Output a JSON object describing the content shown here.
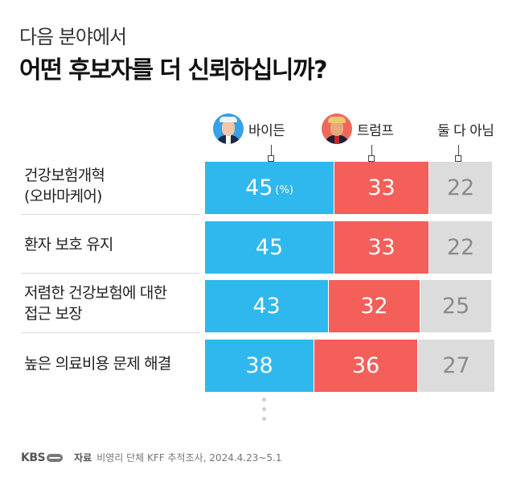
{
  "header": {
    "subtitle": "다음 분야에서",
    "title": "어떤 후보자를 더 신뢰하십니까?"
  },
  "legend": [
    {
      "name": "바이든",
      "color": "#2fb8ee"
    },
    {
      "name": "트럼프",
      "color": "#f45f5a"
    },
    {
      "name": "둘 다 아님",
      "color": "#dcdcdc"
    }
  ],
  "chart_data": {
    "type": "bar",
    "orientation": "horizontal",
    "stacked": true,
    "unit": "(%)",
    "categories": [
      [
        "건강보험개혁",
        "(오바마케어)"
      ],
      [
        "환자 보호 유지"
      ],
      [
        "저렴한 건강보험에 대한",
        "접근 보장"
      ],
      [
        "높은 의료비용 문제 해결"
      ]
    ],
    "series": [
      {
        "name": "바이든",
        "values": [
          45,
          45,
          43,
          38
        ],
        "labels": [
          "45",
          "45",
          "43",
          "38"
        ]
      },
      {
        "name": "트럼프",
        "values": [
          33,
          33,
          32,
          36
        ],
        "labels": [
          "33",
          "33",
          "32",
          "36"
        ]
      },
      {
        "name": "둘 다 아님",
        "values": [
          22,
          22,
          25,
          27
        ],
        "labels": [
          "22",
          "22",
          "25",
          "27"
        ]
      }
    ]
  },
  "footer": {
    "brand": "KBS",
    "source_key": "자료",
    "source_text": "비영리 단체 KFF 추적조사, 2024.4.23~5.1"
  }
}
